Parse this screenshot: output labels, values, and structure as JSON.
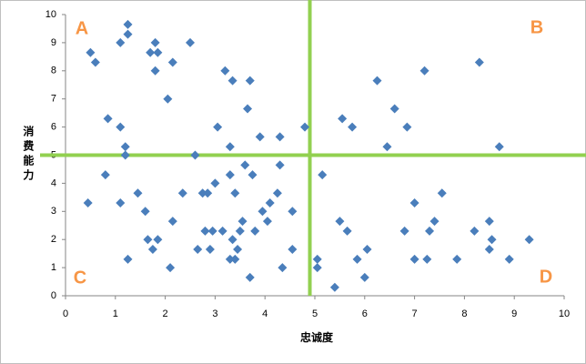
{
  "chart_data": {
    "type": "scatter",
    "x": [
      0.5,
      0.6,
      1.25,
      1.25,
      1.1,
      1.8,
      1.7,
      1.85,
      1.8,
      2.15,
      2.5,
      2.05,
      0.85,
      1.1,
      1.2,
      1.2,
      3.2,
      3.35,
      3.7,
      3.65,
      3.05,
      3.9,
      4.3,
      3.3,
      2.6,
      4.8,
      6.25,
      7.2,
      8.3,
      5.55,
      5.75,
      6.6,
      6.85,
      6.45,
      8.7,
      0.8,
      0.45,
      1.1,
      1.25,
      1.45,
      1.6,
      1.65,
      1.75,
      1.85,
      2.1,
      2.15,
      2.35,
      2.65,
      2.75,
      2.85,
      2.8,
      2.95,
      2.9,
      3.0,
      3.15,
      3.3,
      3.3,
      3.35,
      3.4,
      3.4,
      3.45,
      3.5,
      3.55,
      3.6,
      3.7,
      3.75,
      3.8,
      3.95,
      4.05,
      4.1,
      4.25,
      4.3,
      4.35,
      4.55,
      4.55,
      5.15,
      5.05,
      5.05,
      5.4,
      5.5,
      5.65,
      5.85,
      6.05,
      6.0,
      6.8,
      7.0,
      7.0,
      7.25,
      7.3,
      7.4,
      7.55,
      7.85,
      8.2,
      8.5,
      8.5,
      8.55,
      8.9,
      9.3
    ],
    "series": [
      {
        "color": "#4a7ebb",
        "values": [
          8.65,
          8.3,
          9.65,
          9.3,
          9.0,
          9.0,
          8.65,
          8.65,
          8.0,
          8.3,
          9.0,
          7.0,
          6.3,
          6.0,
          5.3,
          5.0,
          8.0,
          7.65,
          7.65,
          6.65,
          6.0,
          5.65,
          5.65,
          5.3,
          5.0,
          6.0,
          7.65,
          8.0,
          8.3,
          6.3,
          6.0,
          6.65,
          6.0,
          5.3,
          5.3,
          4.3,
          3.3,
          3.3,
          1.3,
          3.65,
          3.0,
          2.0,
          1.65,
          2.0,
          1.0,
          2.65,
          3.65,
          1.65,
          3.65,
          3.65,
          2.3,
          2.3,
          1.65,
          4.0,
          2.3,
          4.3,
          1.3,
          2.0,
          1.3,
          3.65,
          1.65,
          2.3,
          2.65,
          4.65,
          0.65,
          4.3,
          2.3,
          3.0,
          2.65,
          3.3,
          3.65,
          4.65,
          1.0,
          3.0,
          1.65,
          4.3,
          1.3,
          1.0,
          0.3,
          2.65,
          2.3,
          1.3,
          1.65,
          0.65,
          2.3,
          3.3,
          1.3,
          1.3,
          2.3,
          2.65,
          3.65,
          1.3,
          2.3,
          2.65,
          1.65,
          2.0,
          1.3,
          2.0
        ]
      }
    ],
    "xlabel": "忠诚度",
    "ylabel": "消费能力",
    "xlim": [
      0,
      10
    ],
    "ylim": [
      0,
      10
    ],
    "xticks": [
      0,
      1,
      2,
      3,
      4,
      5,
      6,
      7,
      8,
      9,
      10
    ],
    "yticks": [
      0,
      1,
      2,
      3,
      4,
      5,
      6,
      7,
      8,
      9,
      10
    ],
    "grid": false,
    "reference_lines": {
      "x": 4.9,
      "y": 5,
      "color": "#92d050"
    },
    "annotations": [
      "A",
      "B",
      "C",
      "D"
    ],
    "annotation_color": "#f79646"
  }
}
